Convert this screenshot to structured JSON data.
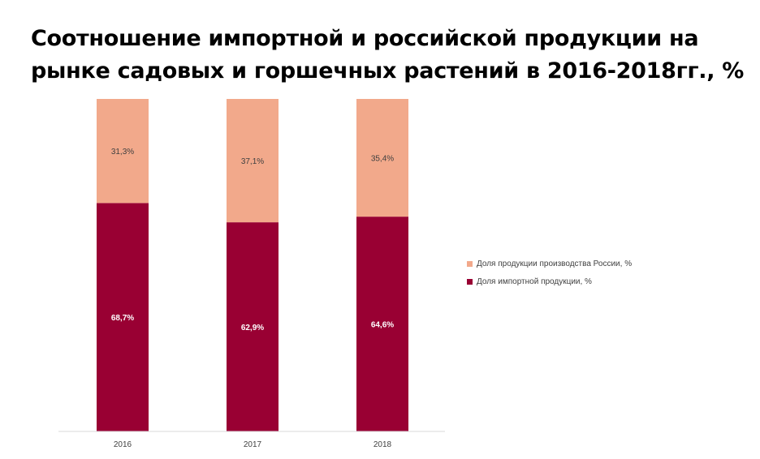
{
  "chart_data": {
    "type": "bar",
    "stacked": true,
    "title": "Соотношение импортной и российской продукции на рынке садовых и горшечных растений в 2016-2018гг., %",
    "categories": [
      "2016",
      "2017",
      "2018"
    ],
    "series": [
      {
        "name": "Доля импортной продукции, %",
        "values": [
          68.7,
          62.9,
          64.6
        ],
        "labels": [
          "68,7%",
          "62,9%",
          "64,6%"
        ],
        "color": "#990033"
      },
      {
        "name": "Доля продукции производства России, %",
        "values": [
          31.3,
          37.1,
          35.4
        ],
        "labels": [
          "31,3%",
          "37,1%",
          "35,4%"
        ],
        "color": "#f2a98b"
      }
    ],
    "legend_order": [
      1,
      0
    ],
    "ylim": [
      0,
      100
    ],
    "grid": false,
    "legend_position": "right"
  }
}
